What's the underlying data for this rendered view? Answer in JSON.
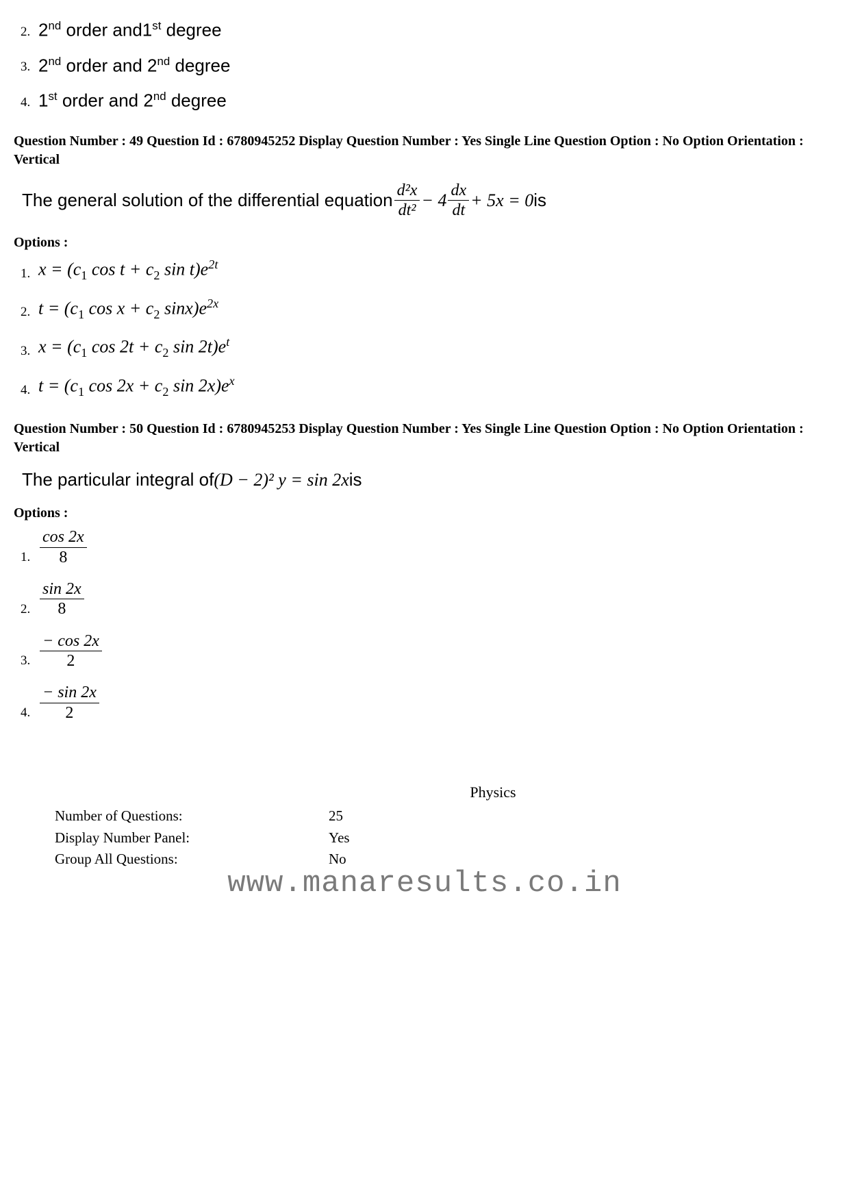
{
  "prev_options": {
    "o2": {
      "num": "2.",
      "text_parts": [
        "2",
        "nd",
        " order and1",
        "st",
        " degree"
      ]
    },
    "o3": {
      "num": "3.",
      "text_parts": [
        "2",
        "nd",
        " order and 2",
        "nd",
        " degree"
      ]
    },
    "o4": {
      "num": "4.",
      "text_parts": [
        "1",
        "st",
        " order and 2",
        "nd",
        "  degree"
      ]
    }
  },
  "q49": {
    "meta": "Question Number : 49  Question Id : 6780945252  Display Question Number : Yes  Single Line Question Option : No  Option Orientation : Vertical",
    "q_lead": "The general solution of the differential equation  ",
    "frac1_num": "d²x",
    "frac1_den": "dt²",
    "mid1": " − 4",
    "frac2_num": "dx",
    "frac2_den": "dt",
    "tail": " + 5x = 0",
    "is": "  is",
    "options_label": "Options :",
    "opts": [
      {
        "n": "1.",
        "lhs": "x = (c",
        "s1": "1",
        "m1": " cos t + c",
        "s2": "2",
        "m2": " sin t)e",
        "exp": "2t"
      },
      {
        "n": "2.",
        "lhs": "t = (c",
        "s1": "1",
        "m1": " cos x + c",
        "s2": "2",
        "m2": " sinx)e",
        "exp": "2x"
      },
      {
        "n": "3.",
        "lhs": "x = (c",
        "s1": "1",
        "m1": " cos 2t + c",
        "s2": "2",
        "m2": " sin 2t)e",
        "exp": "t"
      },
      {
        "n": "4.",
        "lhs": "t = (c",
        "s1": "1",
        "m1": " cos 2x + c",
        "s2": "2",
        "m2": " sin 2x)e",
        "exp": "x"
      }
    ]
  },
  "q50": {
    "meta": "Question Number : 50  Question Id : 6780945253  Display Question Number : Yes  Single Line Question Option : No  Option Orientation : Vertical",
    "q_lead": "The particular integral of  ",
    "expr": "(D − 2)² y = sin 2x",
    "is": "  is",
    "options_label": "Options :",
    "opts": [
      {
        "n": "1.",
        "num": "cos 2x",
        "den": "8"
      },
      {
        "n": "2.",
        "num": "sin 2x",
        "den": "8"
      },
      {
        "n": "3.",
        "num": "− cos 2x",
        "den": "2"
      },
      {
        "n": "4.",
        "num": "− sin 2x",
        "den": "2"
      }
    ]
  },
  "section": {
    "title": "Physics",
    "rows": [
      {
        "lab": "Number of Questions:",
        "val": "25"
      },
      {
        "lab": "Display Number Panel:",
        "val": "Yes"
      },
      {
        "lab": "Group All Questions:",
        "val": "No"
      }
    ]
  },
  "watermark": "www.manaresults.co.in"
}
